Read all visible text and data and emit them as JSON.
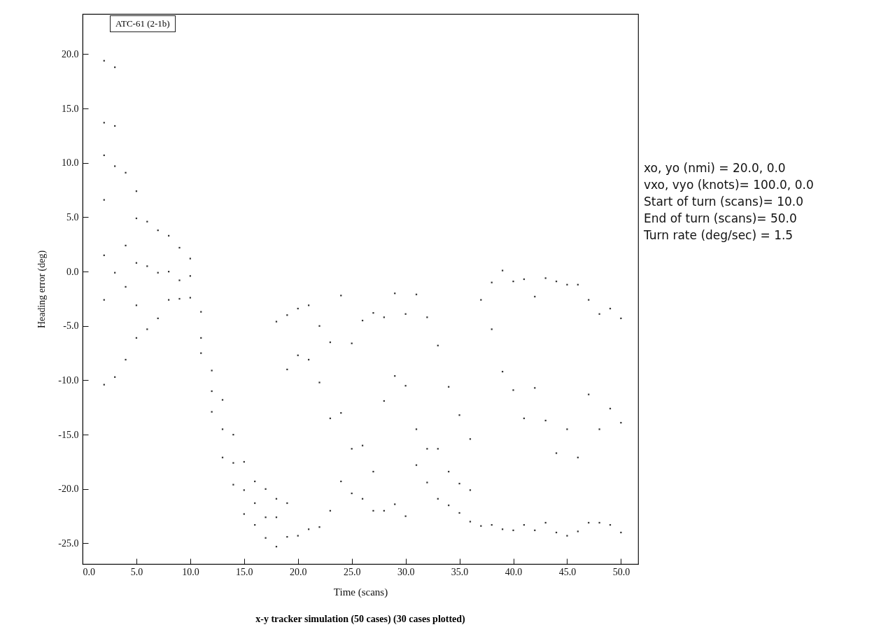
{
  "chart_data": {
    "type": "scatter",
    "xlabel": "Time (scans)",
    "ylabel": "Heading error (deg)",
    "annotations": [
      "ATC-61 (2-1b)",
      "xo, yo (nmi) = 20.0,   0.0",
      "vxo, vyo  (knots)= 100.0, 0.0",
      "Start of turn (scans)= 10.0",
      "End of turn (scans)= 50.0",
      "Turn rate (deg/sec) = 1.5",
      "x-y tracker simulation (50 cases) (30 cases plotted)"
    ],
    "xlim": [
      0,
      51.6
    ],
    "ylim": [
      -26.9,
      23.7
    ],
    "xticks": [
      {
        "value": 0,
        "label": "0.0"
      },
      {
        "value": 5,
        "label": "5.0"
      },
      {
        "value": 10,
        "label": "10.0"
      },
      {
        "value": 15,
        "label": "15.0"
      },
      {
        "value": 20,
        "label": "20.0"
      },
      {
        "value": 25,
        "label": "25.0"
      },
      {
        "value": 30,
        "label": "30.0"
      },
      {
        "value": 35,
        "label": "35.0"
      },
      {
        "value": 40,
        "label": "40.0"
      },
      {
        "value": 45,
        "label": "45.0"
      },
      {
        "value": 50,
        "label": "50.0"
      }
    ],
    "yticks": [
      {
        "value": 20,
        "label": "20.0"
      },
      {
        "value": 15,
        "label": "15.0"
      },
      {
        "value": 10,
        "label": "10.0"
      },
      {
        "value": 5,
        "label": "5.0"
      },
      {
        "value": 0,
        "label": "0.0"
      },
      {
        "value": -5,
        "label": "-5.0"
      },
      {
        "value": -10,
        "label": "-10.0"
      },
      {
        "value": -15,
        "label": "-15.0"
      },
      {
        "value": -20,
        "label": "-20.0"
      },
      {
        "value": -25,
        "label": "-25.0"
      }
    ],
    "marker": "square",
    "grid": false,
    "series": [
      {
        "color": "#333333",
        "x": [
          2,
          2,
          2,
          2,
          2,
          2,
          2,
          3,
          3,
          3,
          3,
          3,
          4,
          4,
          4,
          4,
          5,
          5,
          5,
          5,
          5,
          6,
          6,
          6,
          7,
          7,
          7,
          8,
          8,
          8,
          9,
          9,
          9,
          10,
          10,
          10,
          11,
          11,
          11,
          12,
          12,
          12,
          13,
          13,
          13,
          14,
          14,
          14,
          15,
          15,
          15,
          16,
          16,
          16,
          17,
          17,
          17,
          18,
          18,
          18,
          18,
          19,
          19,
          19,
          19,
          20,
          20,
          20,
          21,
          21,
          21,
          22,
          22,
          22,
          23,
          23,
          23,
          24,
          24,
          24,
          25,
          25,
          25,
          26,
          26,
          26,
          27,
          27,
          27,
          28,
          28,
          28,
          29,
          29,
          29,
          30,
          30,
          30,
          31,
          31,
          31,
          32,
          32,
          32,
          33,
          33,
          33,
          34,
          34,
          34,
          35,
          35,
          35,
          36,
          36,
          36,
          37,
          37,
          38,
          38,
          38,
          39,
          39,
          39,
          40,
          40,
          40,
          41,
          41,
          41,
          42,
          42,
          42,
          43,
          43,
          43,
          44,
          44,
          44,
          45,
          45,
          45,
          46,
          46,
          46,
          47,
          47,
          47,
          48,
          48,
          48,
          49,
          49,
          49,
          50,
          50,
          50
        ],
        "values": [
          19.4,
          13.7,
          10.7,
          6.6,
          1.5,
          -2.6,
          -10.4,
          18.8,
          13.4,
          9.7,
          -0.1,
          -9.7,
          9.1,
          2.4,
          -1.4,
          -8.1,
          7.4,
          4.9,
          0.8,
          -3.1,
          -6.1,
          4.6,
          0.5,
          -5.3,
          3.8,
          -0.1,
          -4.3,
          3.3,
          0.0,
          -2.6,
          2.2,
          -0.8,
          -2.5,
          1.2,
          -0.4,
          -2.4,
          -3.7,
          -6.1,
          -7.5,
          -9.1,
          -11.0,
          -12.9,
          -11.8,
          -14.5,
          -17.1,
          -15.0,
          -17.6,
          -19.6,
          -17.5,
          -20.1,
          -22.3,
          -19.3,
          -21.3,
          -23.3,
          -20.0,
          -22.6,
          -24.5,
          -4.6,
          -20.9,
          -22.6,
          -25.3,
          -4.0,
          -9.0,
          -21.3,
          -24.4,
          -3.4,
          -7.7,
          -24.3,
          -3.1,
          -8.1,
          -23.7,
          -5.0,
          -10.2,
          -23.5,
          -6.5,
          -13.5,
          -22.0,
          -2.2,
          -13.0,
          -19.3,
          -6.6,
          -16.3,
          -20.4,
          -4.5,
          -16.0,
          -20.9,
          -3.8,
          -18.4,
          -22.0,
          -4.2,
          -11.9,
          -22.0,
          -2.0,
          -9.6,
          -21.4,
          -3.9,
          -10.5,
          -22.5,
          -2.1,
          -14.5,
          -17.8,
          -4.2,
          -16.3,
          -19.4,
          -6.8,
          -16.3,
          -20.9,
          -10.6,
          -18.4,
          -21.5,
          -13.2,
          -19.5,
          -22.2,
          -15.4,
          -20.1,
          -23.0,
          -2.6,
          -23.4,
          -1.0,
          -5.3,
          -23.3,
          0.1,
          -9.2,
          -23.7,
          -0.9,
          -10.9,
          -23.8,
          -0.7,
          -13.5,
          -23.3,
          -2.3,
          -10.7,
          -23.8,
          -0.6,
          -13.7,
          -23.1,
          -0.9,
          -16.7,
          -24.0,
          -1.2,
          -14.5,
          -24.3,
          -1.2,
          -17.1,
          -23.9,
          -2.6,
          -11.3,
          -23.1,
          -3.9,
          -14.5,
          -23.1,
          -3.4,
          -12.6,
          -23.3,
          -4.3,
          -13.9,
          -24.0
        ]
      }
    ]
  }
}
